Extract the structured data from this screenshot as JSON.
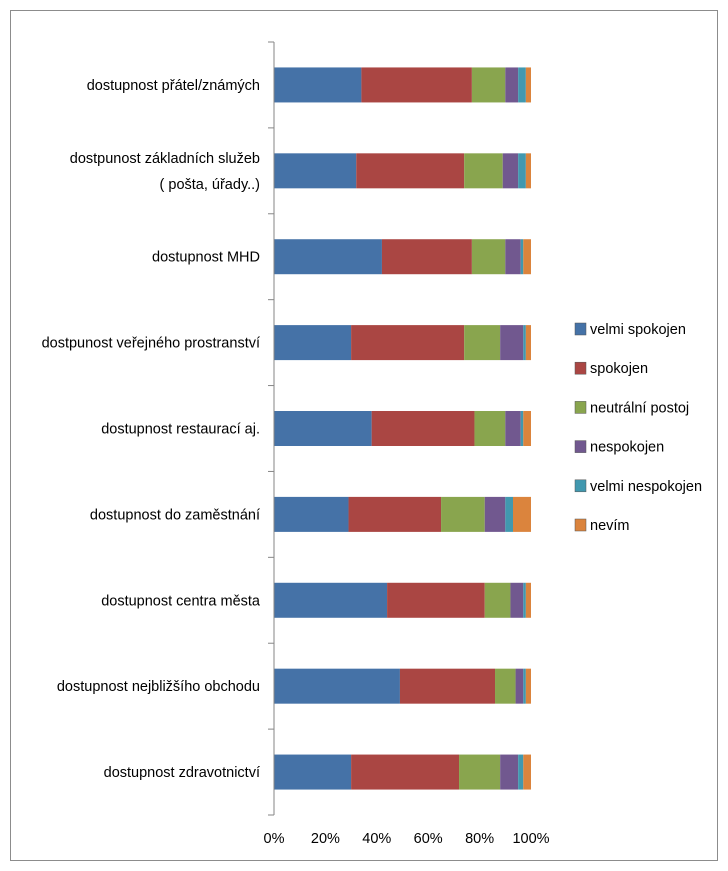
{
  "chart_data": {
    "type": "bar",
    "orientation": "horizontal",
    "stacked": "percent",
    "categories": [
      [
        "dostupnost přátel/známých"
      ],
      [
        "dostpunost základních služeb",
        "( pošta, úřady..)"
      ],
      [
        "dostupnost MHD"
      ],
      [
        "dostpunost veřejného prostranství"
      ],
      [
        "dostupnost restaurací aj."
      ],
      [
        "dostupnost do zaměstnání"
      ],
      [
        "dostupnost centra města"
      ],
      [
        "dostupnost nejbližšího obchodu"
      ],
      [
        "dostupnost zdravotnictví"
      ]
    ],
    "series": [
      {
        "name": "velmi spokojen",
        "color": "#4572a7",
        "values": [
          34,
          32,
          42,
          30,
          38,
          29,
          44,
          49,
          30
        ]
      },
      {
        "name": "spokojen",
        "color": "#aa4643",
        "values": [
          43,
          42,
          35,
          44,
          40,
          36,
          38,
          37,
          42
        ]
      },
      {
        "name": "neutrální postoj",
        "color": "#89a54e",
        "values": [
          13,
          15,
          13,
          14,
          12,
          17,
          10,
          8,
          16
        ]
      },
      {
        "name": "nespokojen",
        "color": "#71588f",
        "values": [
          5,
          6,
          6,
          9,
          6,
          8,
          5,
          3,
          7
        ]
      },
      {
        "name": "velmi nespokojen",
        "color": "#4198af",
        "values": [
          3,
          3,
          1,
          1,
          1,
          3,
          1,
          1,
          2
        ]
      },
      {
        "name": "nevím",
        "color": "#db843d",
        "values": [
          2,
          2,
          3,
          2,
          3,
          7,
          2,
          2,
          3
        ]
      }
    ],
    "xticks": [
      "0%",
      "20%",
      "40%",
      "60%",
      "80%",
      "100%"
    ],
    "xlim": [
      0,
      100
    ],
    "grid": false,
    "legend_position": "right"
  }
}
